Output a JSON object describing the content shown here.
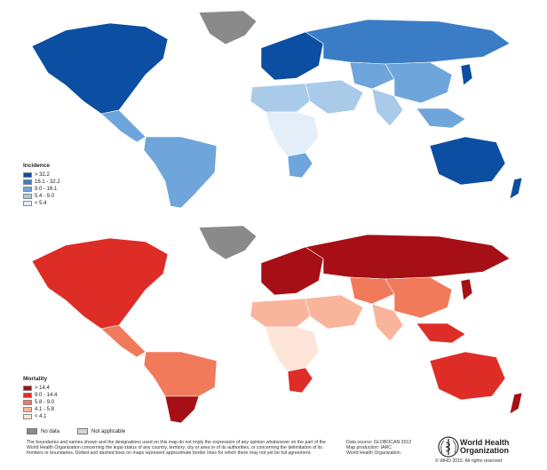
{
  "legends": {
    "incidence": {
      "title": "Incidence",
      "items": [
        {
          "label": "> 32.2",
          "color": "#0b4ea2"
        },
        {
          "label": "16.1 - 32.2",
          "color": "#3a7cc6"
        },
        {
          "label": "9.0 - 16.1",
          "color": "#6ea6db"
        },
        {
          "label": "5.4 - 9.0",
          "color": "#a9cbe9"
        },
        {
          "label": "< 5.4",
          "color": "#e3eef8"
        }
      ]
    },
    "mortality": {
      "title": "Mortality",
      "items": [
        {
          "label": "> 14.4",
          "color": "#a50f15"
        },
        {
          "label": "9.0 - 14.4",
          "color": "#de2d26"
        },
        {
          "label": "5.8 - 9.0",
          "color": "#f07a5a"
        },
        {
          "label": "4.1 - 5.8",
          "color": "#f9b59b"
        },
        {
          "label": "< 4.1",
          "color": "#fde5da"
        }
      ]
    }
  },
  "other_legend": {
    "no_data": {
      "label": "No data",
      "color": "#8a8a8a"
    },
    "not_applicable": {
      "label": "Not applicable",
      "color": "#d6d6d6"
    }
  },
  "footer": {
    "disclaimer": "The boundaries and names shown and the designations used on this map do not imply the expression of any opinion whatsoever on the part of the World Health Organization concerning the legal status of any country, territory, city or area or of its authorities, or concerning the delimitation of its frontiers or boundaries. Dotted and dashed lines on maps represent approximate border lines for which there may not yet be full agreement.",
    "source_lines": [
      "Data source: GLOBOCAN 2012",
      "Map production: IARC",
      "World Health Organization"
    ],
    "org_name_line1": "World Health",
    "org_name_line2": "Organization",
    "copyright": "© WHO 2015. All rights reserved"
  },
  "map_regions": {
    "incidence": {
      "north_america": "#0b4ea2",
      "greenland": "#8a8a8a",
      "central_america": "#6ea6db",
      "south_america": "#6ea6db",
      "europe": "#0b4ea2",
      "russia": "#3a7cc6",
      "middle_east": "#a9cbe9",
      "africa_north": "#a9cbe9",
      "africa_sub": "#e3eef8",
      "southern_africa": "#6ea6db",
      "asia_central": "#6ea6db",
      "china": "#6ea6db",
      "india": "#a9cbe9",
      "se_asia": "#6ea6db",
      "japan": "#0b4ea2",
      "australia": "#0b4ea2",
      "new_zealand": "#0b4ea2"
    },
    "mortality": {
      "north_america": "#de2d26",
      "greenland": "#8a8a8a",
      "central_america": "#f07a5a",
      "south_america": "#f07a5a",
      "southern_cone": "#a50f15",
      "europe": "#a50f15",
      "russia": "#a50f15",
      "middle_east": "#f9b59b",
      "africa_north": "#f9b59b",
      "africa_sub": "#fde5da",
      "southern_africa": "#de2d26",
      "asia_central": "#f07a5a",
      "china": "#f07a5a",
      "india": "#f9b59b",
      "se_asia": "#de2d26",
      "japan": "#a50f15",
      "australia": "#de2d26",
      "new_zealand": "#a50f15"
    }
  }
}
